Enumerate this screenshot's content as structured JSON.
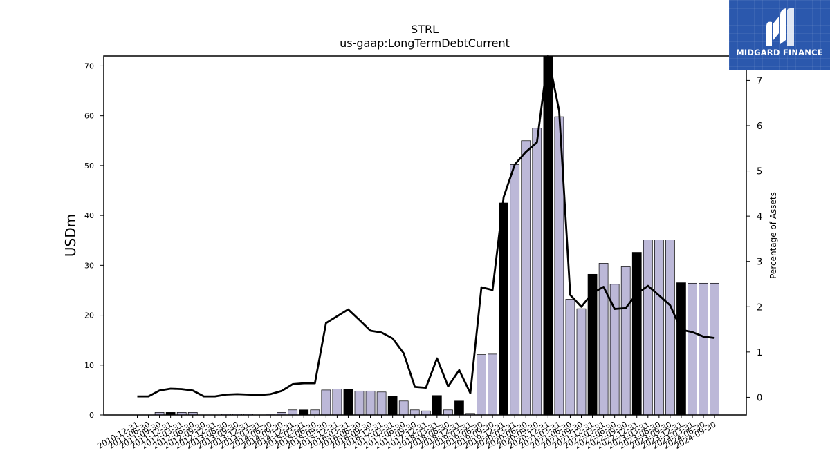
{
  "chart_data": {
    "type": "bar",
    "title": "STRL",
    "subtitle": "us-gaap:LongTermDebtCurrent",
    "ylabel": "USDm",
    "y2label": "Percentage of Assets",
    "ylim": [
      0,
      72
    ],
    "y2lim": [
      -0.39,
      7.54
    ],
    "yticks": [
      0,
      10,
      20,
      30,
      40,
      50,
      60,
      70
    ],
    "y2ticks": [
      0,
      1,
      2,
      3,
      4,
      5,
      6,
      7
    ],
    "grid": false,
    "categories": [
      "2010-12-31",
      "2011-06-30",
      "2011-09-30",
      "2011-12-31",
      "2012-03-31",
      "2012-06-30",
      "2012-09-30",
      "2012-12-31",
      "2013-06-30",
      "2013-09-30",
      "2013-12-31",
      "2014-03-31",
      "2014-06-30",
      "2014-09-30",
      "2014-12-31",
      "2015-03-31",
      "2015-06-30",
      "2015-09-30",
      "2015-12-31",
      "2016-03-31",
      "2016-06-30",
      "2016-09-30",
      "2016-12-31",
      "2017-03-31",
      "2017-06-30",
      "2017-09-30",
      "2017-12-31",
      "2018-03-31",
      "2018-06-30",
      "2018-12-31",
      "2019-03-31",
      "2019-06-30",
      "2019-09-30",
      "2019-12-31",
      "2020-03-31",
      "2020-06-30",
      "2020-09-30",
      "2020-12-31",
      "2021-03-31",
      "2021-06-30",
      "2021-09-30",
      "2021-12-31",
      "2022-03-31",
      "2022-06-30",
      "2022-09-30",
      "2022-12-31",
      "2023-03-31",
      "2023-06-30",
      "2023-09-30",
      "2023-12-31",
      "2024-03-31",
      "2024-06-30",
      "2024-09-30"
    ],
    "series": [
      {
        "kind": "bar",
        "axis": "left",
        "values": [
          0,
          0,
          0.5,
          0.5,
          0.5,
          0.5,
          0,
          0,
          0.2,
          0.2,
          0.2,
          0,
          0.2,
          0.5,
          1.0,
          1.0,
          1.0,
          5.0,
          5.2,
          5.2,
          4.8,
          4.8,
          4.6,
          3.8,
          2.8,
          1.0,
          0.8,
          3.9,
          1.0,
          2.8,
          0.3,
          12.1,
          12.2,
          42.5,
          50.2,
          55.0,
          57.5,
          72.0,
          59.8,
          23.2,
          21.3,
          28.2,
          30.4,
          26.2,
          29.7,
          32.6,
          35.1,
          35.1,
          35.1,
          26.5,
          26.4,
          26.4,
          26.4
        ],
        "highlight": [
          false,
          false,
          false,
          true,
          false,
          false,
          false,
          false,
          false,
          false,
          false,
          false,
          false,
          false,
          false,
          true,
          false,
          false,
          false,
          true,
          false,
          false,
          false,
          true,
          false,
          false,
          false,
          true,
          false,
          true,
          false,
          false,
          false,
          true,
          false,
          false,
          false,
          true,
          false,
          false,
          false,
          true,
          false,
          false,
          false,
          true,
          false,
          false,
          false,
          true,
          false,
          false,
          false
        ],
        "color": "#bcb8d8",
        "highlight_color": "#000000"
      },
      {
        "kind": "line",
        "axis": "right",
        "values": [
          0.02,
          0.02,
          0.15,
          0.19,
          0.18,
          0.15,
          0.02,
          0.02,
          0.06,
          0.07,
          0.06,
          0.05,
          0.07,
          0.14,
          0.29,
          0.31,
          0.31,
          1.64,
          1.79,
          1.94,
          1.71,
          1.47,
          1.43,
          1.3,
          0.97,
          0.23,
          0.21,
          0.86,
          0.24,
          0.6,
          0.09,
          2.43,
          2.37,
          4.42,
          5.14,
          5.42,
          5.63,
          7.56,
          6.33,
          2.26,
          2.0,
          2.3,
          2.44,
          1.95,
          1.97,
          2.29,
          2.46,
          2.25,
          2.03,
          1.49,
          1.44,
          1.34,
          1.31
        ],
        "color": "#000000"
      }
    ]
  },
  "logo": {
    "text": "MIDGARD FINANCE",
    "background": "#2b58ad"
  }
}
